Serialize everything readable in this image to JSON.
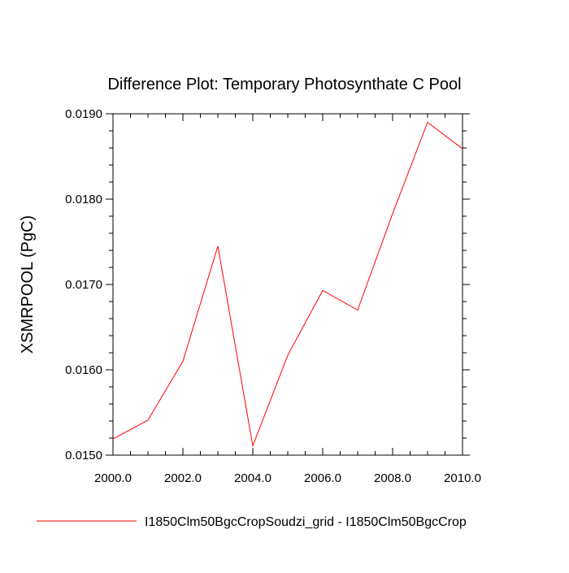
{
  "chart_data": {
    "type": "line",
    "title": "Difference Plot: Temporary Photosynthate C Pool",
    "xlabel": "",
    "ylabel": "XSMRPOOL  (PgC)",
    "xlim": [
      2000,
      2010
    ],
    "ylim": [
      0.015,
      0.019
    ],
    "x_ticks": [
      2000,
      2002,
      2004,
      2006,
      2008,
      2010
    ],
    "x_tick_labels": [
      "2000.0",
      "2002.0",
      "2004.0",
      "2006.0",
      "2008.0",
      "2010.0"
    ],
    "y_ticks": [
      0.015,
      0.016,
      0.017,
      0.018,
      0.019
    ],
    "y_tick_labels": [
      "0.0150",
      "0.0160",
      "0.0170",
      "0.0180",
      "0.0190"
    ],
    "grid": false,
    "legend_position": "bottom",
    "series": [
      {
        "name": "I1850Clm50BgcCropSoudzi_grid - I1850Clm50BgcCrop",
        "color": "#ff0000",
        "x": [
          2000,
          2001,
          2002,
          2003,
          2004,
          2005,
          2006,
          2007,
          2008,
          2009,
          2010
        ],
        "y": [
          0.01519,
          0.01541,
          0.0161,
          0.01745,
          0.01511,
          0.01617,
          0.01693,
          0.0167,
          0.01783,
          0.0189,
          0.01859
        ]
      }
    ]
  }
}
